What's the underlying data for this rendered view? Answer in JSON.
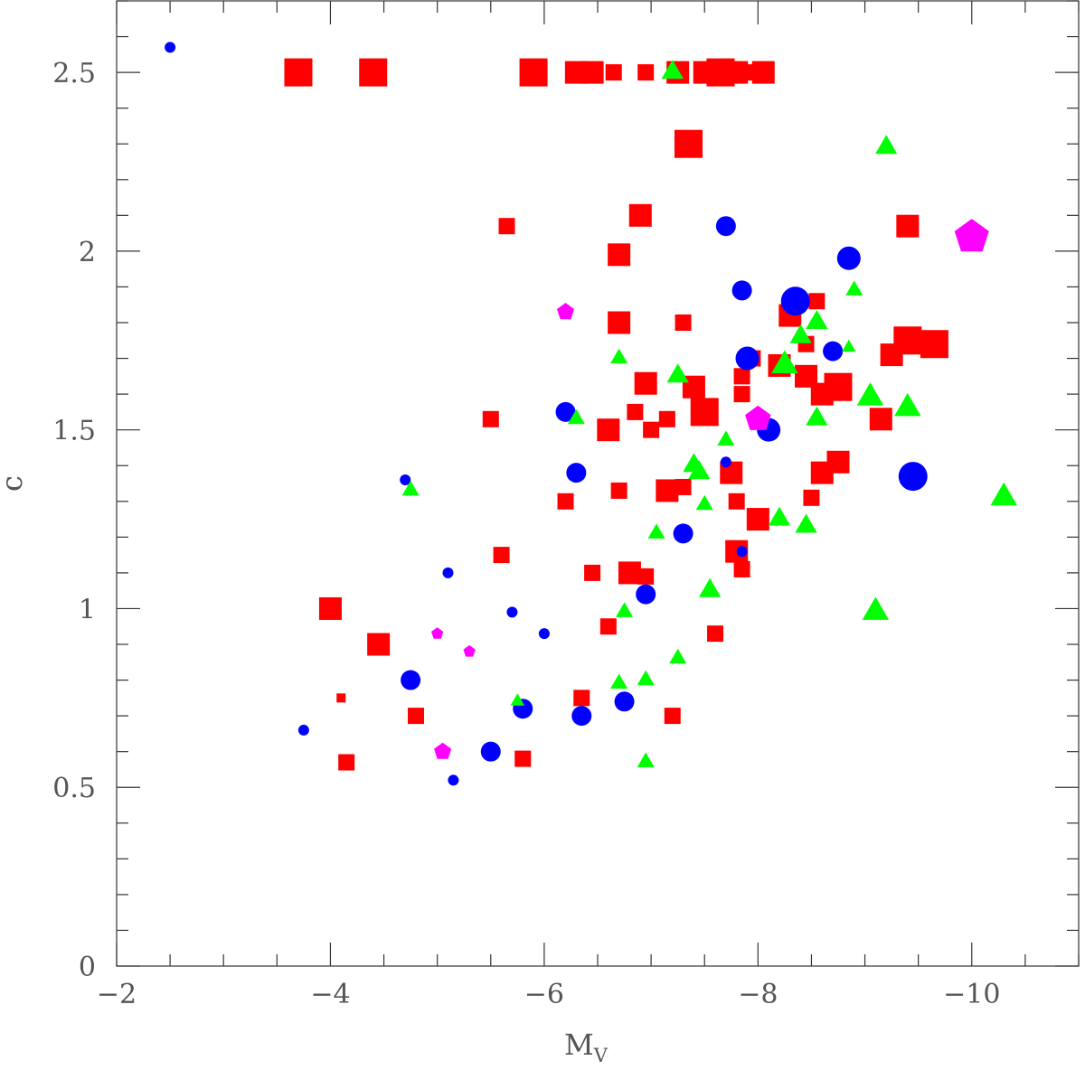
{
  "chart_data": {
    "type": "scatter",
    "title": "",
    "xlabel": "M",
    "xlabel_subscript": "V",
    "ylabel": "c",
    "xlim": [
      -2,
      -11
    ],
    "ylim": [
      0,
      2.7
    ],
    "x_ticks": [
      -2,
      -4,
      -6,
      -8,
      -10
    ],
    "x_tick_labels": [
      "−2",
      "−4",
      "−6",
      "−8",
      "−10"
    ],
    "y_ticks": [
      0,
      0.5,
      1,
      1.5,
      2,
      2.5
    ],
    "y_tick_labels": [
      "0",
      "0.5",
      "1",
      "1.5",
      "2",
      "2.5"
    ],
    "grid": false,
    "legend": "none",
    "series": [
      {
        "marker": "square",
        "color": "#ff0000",
        "points": [
          {
            "x": -3.7,
            "y": 2.5,
            "s": 3
          },
          {
            "x": -4.4,
            "y": 2.5,
            "s": 3
          },
          {
            "x": -5.9,
            "y": 2.5,
            "s": 3
          },
          {
            "x": -6.3,
            "y": 2.5,
            "s": 2
          },
          {
            "x": -6.45,
            "y": 2.5,
            "s": 2
          },
          {
            "x": -6.65,
            "y": 2.5,
            "s": 1
          },
          {
            "x": -6.95,
            "y": 2.5,
            "s": 1
          },
          {
            "x": -7.25,
            "y": 2.5,
            "s": 2
          },
          {
            "x": -7.5,
            "y": 2.5,
            "s": 2
          },
          {
            "x": -7.65,
            "y": 2.5,
            "s": 3
          },
          {
            "x": -7.8,
            "y": 2.5,
            "s": 2
          },
          {
            "x": -7.95,
            "y": 2.5,
            "s": 1
          },
          {
            "x": -8.05,
            "y": 2.5,
            "s": 2
          },
          {
            "x": -7.35,
            "y": 2.3,
            "s": 3
          },
          {
            "x": -5.65,
            "y": 2.07,
            "s": 1
          },
          {
            "x": -6.9,
            "y": 2.1,
            "s": 2
          },
          {
            "x": -6.7,
            "y": 1.99,
            "s": 2
          },
          {
            "x": -9.4,
            "y": 2.07,
            "s": 2
          },
          {
            "x": -6.7,
            "y": 1.8,
            "s": 2
          },
          {
            "x": -7.3,
            "y": 1.8,
            "s": 1
          },
          {
            "x": -8.3,
            "y": 1.82,
            "s": 2
          },
          {
            "x": -8.55,
            "y": 1.86,
            "s": 1
          },
          {
            "x": -8.45,
            "y": 1.74,
            "s": 1
          },
          {
            "x": -7.95,
            "y": 1.7,
            "s": 1
          },
          {
            "x": -8.2,
            "y": 1.68,
            "s": 2
          },
          {
            "x": -8.45,
            "y": 1.65,
            "s": 2
          },
          {
            "x": -9.25,
            "y": 1.71,
            "s": 2
          },
          {
            "x": -9.4,
            "y": 1.75,
            "s": 3
          },
          {
            "x": -9.65,
            "y": 1.74,
            "s": 3
          },
          {
            "x": -6.95,
            "y": 1.63,
            "s": 2
          },
          {
            "x": -7.4,
            "y": 1.62,
            "s": 2
          },
          {
            "x": -7.85,
            "y": 1.65,
            "s": 1
          },
          {
            "x": -7.85,
            "y": 1.6,
            "s": 1
          },
          {
            "x": -8.6,
            "y": 1.6,
            "s": 2
          },
          {
            "x": -8.75,
            "y": 1.62,
            "s": 3
          },
          {
            "x": -7.5,
            "y": 1.55,
            "s": 3
          },
          {
            "x": -6.85,
            "y": 1.55,
            "s": 1
          },
          {
            "x": -7.15,
            "y": 1.53,
            "s": 1
          },
          {
            "x": -7.0,
            "y": 1.5,
            "s": 1
          },
          {
            "x": -6.6,
            "y": 1.5,
            "s": 2
          },
          {
            "x": -5.5,
            "y": 1.53,
            "s": 1
          },
          {
            "x": -9.15,
            "y": 1.53,
            "s": 2
          },
          {
            "x": -7.75,
            "y": 1.38,
            "s": 2
          },
          {
            "x": -8.6,
            "y": 1.38,
            "s": 2
          },
          {
            "x": -8.75,
            "y": 1.41,
            "s": 2
          },
          {
            "x": -7.15,
            "y": 1.33,
            "s": 2
          },
          {
            "x": -7.3,
            "y": 1.34,
            "s": 1
          },
          {
            "x": -6.7,
            "y": 1.33,
            "s": 1
          },
          {
            "x": -6.2,
            "y": 1.3,
            "s": 1
          },
          {
            "x": -7.8,
            "y": 1.3,
            "s": 1
          },
          {
            "x": -8.5,
            "y": 1.31,
            "s": 1
          },
          {
            "x": -8.0,
            "y": 1.25,
            "s": 2
          },
          {
            "x": -7.8,
            "y": 1.16,
            "s": 2
          },
          {
            "x": -7.85,
            "y": 1.11,
            "s": 1
          },
          {
            "x": -5.6,
            "y": 1.15,
            "s": 1
          },
          {
            "x": -6.45,
            "y": 1.1,
            "s": 1
          },
          {
            "x": -6.8,
            "y": 1.1,
            "s": 2
          },
          {
            "x": -6.95,
            "y": 1.09,
            "s": 1
          },
          {
            "x": -4.0,
            "y": 1.0,
            "s": 2
          },
          {
            "x": -4.45,
            "y": 0.9,
            "s": 2
          },
          {
            "x": -6.6,
            "y": 0.95,
            "s": 1
          },
          {
            "x": -7.6,
            "y": 0.93,
            "s": 1
          },
          {
            "x": -4.1,
            "y": 0.75,
            "s": 0
          },
          {
            "x": -4.8,
            "y": 0.7,
            "s": 1
          },
          {
            "x": -6.35,
            "y": 0.75,
            "s": 1
          },
          {
            "x": -7.2,
            "y": 0.7,
            "s": 1
          },
          {
            "x": -4.15,
            "y": 0.57,
            "s": 1
          },
          {
            "x": -5.8,
            "y": 0.58,
            "s": 1
          }
        ]
      },
      {
        "marker": "circle",
        "color": "#0000ff",
        "points": [
          {
            "x": -2.5,
            "y": 2.57,
            "s": 0
          },
          {
            "x": -7.7,
            "y": 2.07,
            "s": 1
          },
          {
            "x": -8.85,
            "y": 1.98,
            "s": 2
          },
          {
            "x": -7.85,
            "y": 1.89,
            "s": 1
          },
          {
            "x": -8.35,
            "y": 1.86,
            "s": 3
          },
          {
            "x": -8.7,
            "y": 1.72,
            "s": 1
          },
          {
            "x": -7.9,
            "y": 1.7,
            "s": 2
          },
          {
            "x": -6.2,
            "y": 1.55,
            "s": 1
          },
          {
            "x": -8.1,
            "y": 1.5,
            "s": 2
          },
          {
            "x": -7.7,
            "y": 1.41,
            "s": 0
          },
          {
            "x": -9.45,
            "y": 1.37,
            "s": 3
          },
          {
            "x": -6.3,
            "y": 1.38,
            "s": 1
          },
          {
            "x": -4.7,
            "y": 1.36,
            "s": 0
          },
          {
            "x": -7.3,
            "y": 1.21,
            "s": 1
          },
          {
            "x": -7.85,
            "y": 1.16,
            "s": 0
          },
          {
            "x": -5.1,
            "y": 1.1,
            "s": 0
          },
          {
            "x": -5.7,
            "y": 0.99,
            "s": 0
          },
          {
            "x": -6.95,
            "y": 1.04,
            "s": 1
          },
          {
            "x": -6.0,
            "y": 0.93,
            "s": 0
          },
          {
            "x": -4.75,
            "y": 0.8,
            "s": 1
          },
          {
            "x": -5.8,
            "y": 0.72,
            "s": 1
          },
          {
            "x": -6.35,
            "y": 0.7,
            "s": 1
          },
          {
            "x": -6.75,
            "y": 0.74,
            "s": 1
          },
          {
            "x": -3.75,
            "y": 0.66,
            "s": 0
          },
          {
            "x": -5.5,
            "y": 0.6,
            "s": 1
          },
          {
            "x": -5.15,
            "y": 0.52,
            "s": 0
          }
        ]
      },
      {
        "marker": "triangle",
        "color": "#00ff00",
        "points": [
          {
            "x": -7.2,
            "y": 2.5,
            "s": 2
          },
          {
            "x": -9.2,
            "y": 2.29,
            "s": 2
          },
          {
            "x": -8.9,
            "y": 1.89,
            "s": 1
          },
          {
            "x": -8.55,
            "y": 1.8,
            "s": 2
          },
          {
            "x": -8.4,
            "y": 1.76,
            "s": 2
          },
          {
            "x": -8.85,
            "y": 1.73,
            "s": 0
          },
          {
            "x": -6.7,
            "y": 1.7,
            "s": 1
          },
          {
            "x": -8.25,
            "y": 1.68,
            "s": 3
          },
          {
            "x": -7.25,
            "y": 1.65,
            "s": 2
          },
          {
            "x": -9.05,
            "y": 1.59,
            "s": 3
          },
          {
            "x": -9.4,
            "y": 1.56,
            "s": 3
          },
          {
            "x": -8.55,
            "y": 1.53,
            "s": 2
          },
          {
            "x": -6.3,
            "y": 1.53,
            "s": 1
          },
          {
            "x": -7.7,
            "y": 1.47,
            "s": 1
          },
          {
            "x": -7.4,
            "y": 1.4,
            "s": 2
          },
          {
            "x": -7.45,
            "y": 1.38,
            "s": 2
          },
          {
            "x": -4.75,
            "y": 1.33,
            "s": 1
          },
          {
            "x": -7.5,
            "y": 1.29,
            "s": 1
          },
          {
            "x": -8.2,
            "y": 1.25,
            "s": 2
          },
          {
            "x": -8.45,
            "y": 1.23,
            "s": 2
          },
          {
            "x": -10.3,
            "y": 1.31,
            "s": 3
          },
          {
            "x": -7.05,
            "y": 1.21,
            "s": 1
          },
          {
            "x": -7.55,
            "y": 1.05,
            "s": 2
          },
          {
            "x": -6.75,
            "y": 0.99,
            "s": 1
          },
          {
            "x": -9.1,
            "y": 0.99,
            "s": 3
          },
          {
            "x": -7.25,
            "y": 0.86,
            "s": 1
          },
          {
            "x": -6.7,
            "y": 0.79,
            "s": 1
          },
          {
            "x": -6.95,
            "y": 0.8,
            "s": 1
          },
          {
            "x": -5.75,
            "y": 0.74,
            "s": 0
          },
          {
            "x": -6.95,
            "y": 0.57,
            "s": 1
          }
        ]
      },
      {
        "marker": "pentagon",
        "color": "#ff00ff",
        "points": [
          {
            "x": -10.0,
            "y": 2.04,
            "s": 3
          },
          {
            "x": -6.2,
            "y": 1.83,
            "s": 1
          },
          {
            "x": -8.0,
            "y": 1.53,
            "s": 2
          },
          {
            "x": -5.0,
            "y": 0.93,
            "s": 0
          },
          {
            "x": -5.3,
            "y": 0.88,
            "s": 0
          },
          {
            "x": -5.05,
            "y": 0.6,
            "s": 1
          }
        ]
      }
    ]
  }
}
